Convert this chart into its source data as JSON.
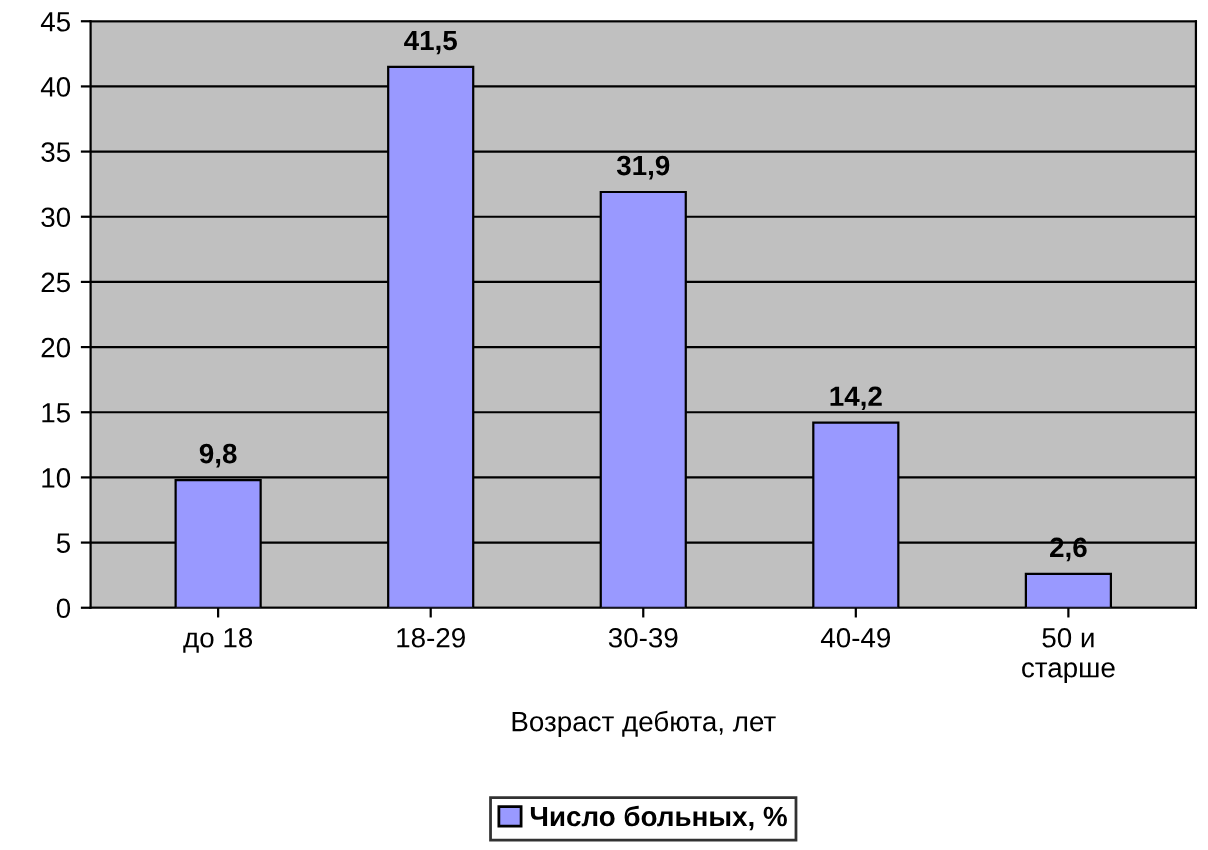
{
  "chart_data": {
    "type": "bar",
    "xlabel": "Возраст дебюта, лет",
    "categories": [
      "до 18",
      "18-29",
      "30-39",
      "40-49",
      "50 и\nстарше"
    ],
    "series": [
      {
        "name": "Число больных, %",
        "color": "#9999ff",
        "values": [
          9.8,
          41.5,
          31.9,
          14.2,
          2.6
        ],
        "value_labels": [
          "9,8",
          "41,5",
          "31,9",
          "14,2",
          "2,6"
        ]
      }
    ],
    "ylim": [
      0,
      45
    ],
    "yticks": [
      0,
      5,
      10,
      15,
      20,
      25,
      30,
      35,
      40,
      45
    ],
    "grid": "y",
    "legend": "bottom"
  }
}
